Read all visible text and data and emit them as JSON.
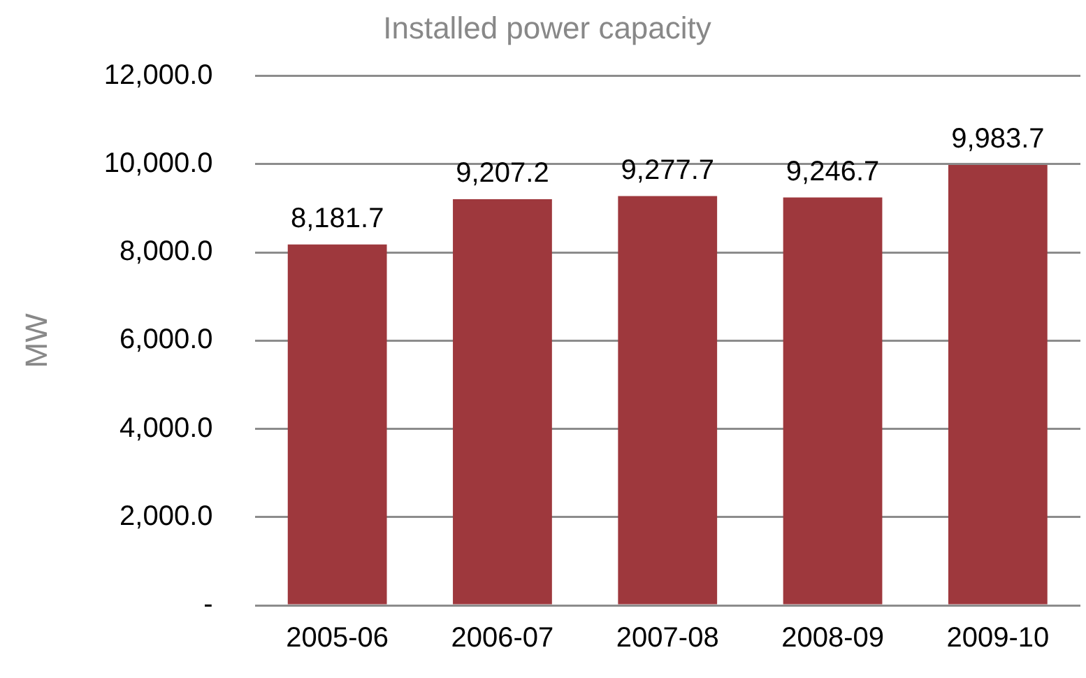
{
  "chart_data": {
    "type": "bar",
    "title": "Installed power capacity",
    "ylabel": "MW",
    "categories": [
      "2005-06",
      "2006-07",
      "2007-08",
      "2008-09",
      "2009-10"
    ],
    "values": [
      8181.7,
      9207.2,
      9277.7,
      9246.7,
      9983.7
    ],
    "value_labels": [
      "8,181.7",
      "9,207.2",
      "9,277.7",
      "9,246.7",
      "9,983.7"
    ],
    "color": "#9e383d",
    "ylim": [
      0,
      12000
    ],
    "yticks": [
      {
        "value": 0,
        "label": "-"
      },
      {
        "value": 2000,
        "label": "2,000.0"
      },
      {
        "value": 4000,
        "label": "4,000.0"
      },
      {
        "value": 6000,
        "label": "6,000.0"
      },
      {
        "value": 8000,
        "label": "8,000.0"
      },
      {
        "value": 10000,
        "label": "10,000.0"
      },
      {
        "value": 12000,
        "label": "12,000.0"
      }
    ],
    "grid": "y",
    "legend": false
  }
}
